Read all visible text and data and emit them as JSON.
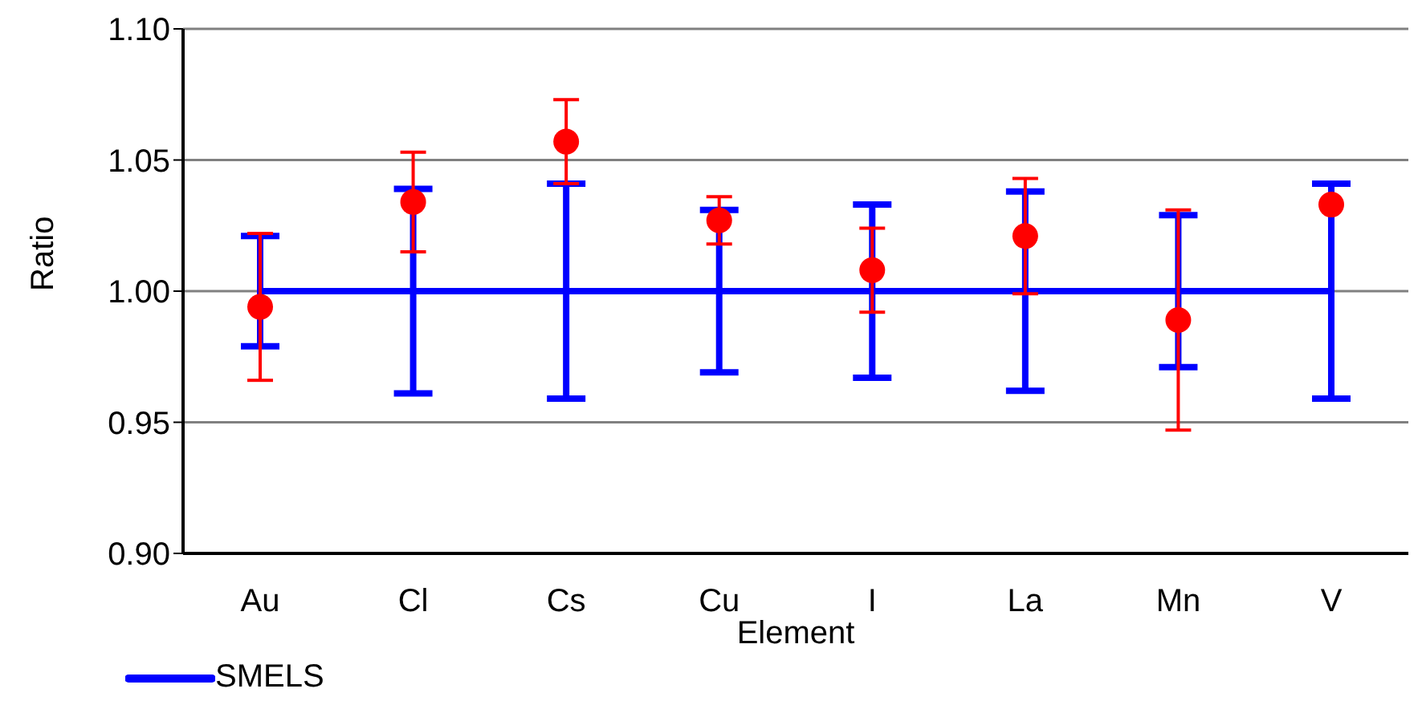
{
  "chart_data": {
    "type": "line",
    "xlabel": "Element",
    "ylabel": "Ratio",
    "categories": [
      "Au",
      "Cl",
      "Cs",
      "Cu",
      "I",
      "La",
      "Mn",
      "V"
    ],
    "series": [
      {
        "name": "SMELS",
        "color": "#0000ff",
        "values": [
          1,
          1,
          1,
          1,
          1,
          1,
          1,
          1
        ],
        "errors": [
          0.021,
          0.039,
          0.041,
          0.031,
          0.033,
          0.038,
          0.029,
          0.041
        ]
      },
      {
        "type": "scatter",
        "marker": "circle",
        "color": "#ff0000",
        "values": [
          0.994,
          1.034,
          1.057,
          1.027,
          1.008,
          1.021,
          0.989,
          1.033
        ],
        "errors": [
          0.028,
          0.019,
          0.016,
          0.009,
          0.016,
          0.022,
          0.042,
          null
        ]
      }
    ],
    "ylim": [
      0.9,
      1.1
    ],
    "yticks": [
      {
        "value": 0.9,
        "label": "0.90"
      },
      0.95,
      {
        "value": 1,
        "label": "1.00"
      },
      1.05,
      {
        "value": 1.1,
        "label": "1.10"
      }
    ],
    "grid": "y",
    "legend": "bottom left"
  }
}
